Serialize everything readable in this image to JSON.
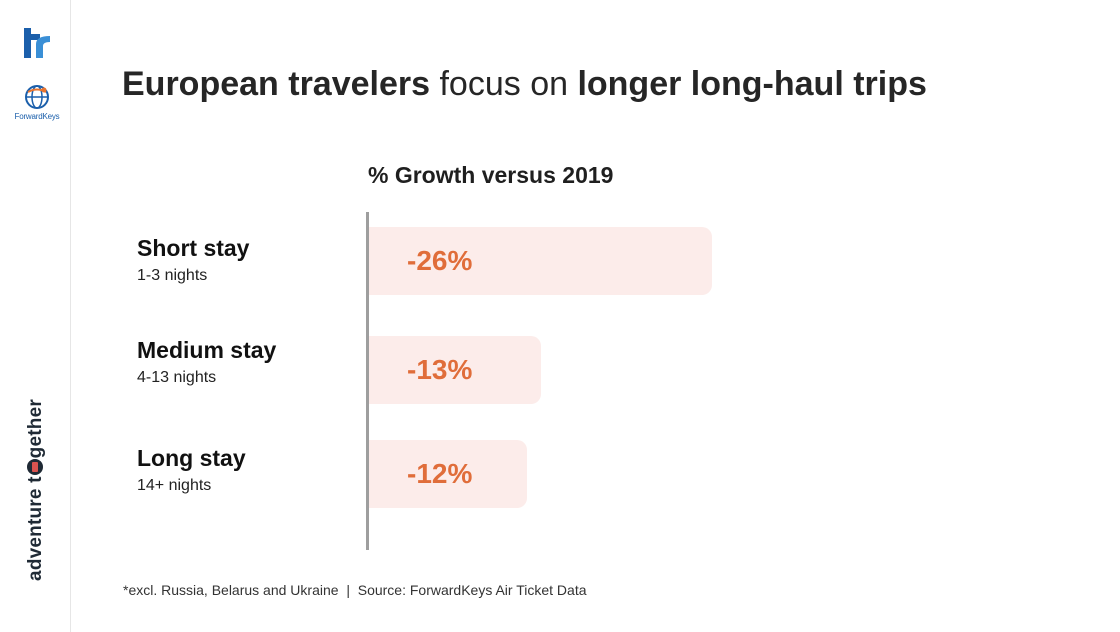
{
  "sidebar": {
    "logo_primary_icon": "tr-logo-icon",
    "logo_secondary": {
      "icon": "globe-icon",
      "text": "ForwardKeys"
    },
    "vertical_tagline": {
      "before": "adventure t",
      "after": "gether"
    }
  },
  "title": {
    "part1_bold": "European travelers",
    "part2": " focus on ",
    "part3_bold": "longer long-haul trips"
  },
  "chart_data": {
    "type": "bar",
    "orientation": "horizontal",
    "title": "% Growth versus 2019",
    "categories": [
      "Short stay",
      "Medium stay",
      "Long stay"
    ],
    "subcategories": [
      "1-3 nights",
      "4-13 nights",
      "14+ nights"
    ],
    "values": [
      -26,
      -13,
      -12
    ],
    "value_labels": [
      "-26%",
      "-13%",
      "-12%"
    ],
    "unit": "%",
    "colors": {
      "bar_fill": "#fcecea",
      "value_text": "#e06d3a",
      "axis": "#9e9e9e"
    }
  },
  "footnote": "*excl. Russia, Belarus and Ukraine  |  Source: ForwardKeys Air Ticket Data"
}
